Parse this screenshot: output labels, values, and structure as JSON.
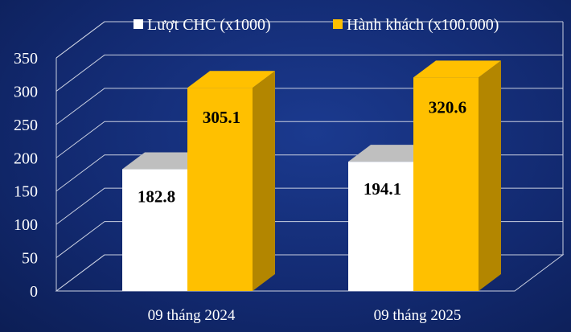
{
  "chart_data": {
    "type": "bar",
    "categories": [
      "09 tháng 2024",
      "09 tháng 2025"
    ],
    "series": [
      {
        "name": "Lượt CHC (x1000)",
        "values": [
          182.8,
          194.1
        ],
        "value_labels": [
          "182.8",
          "194.1"
        ]
      },
      {
        "name": "Hành khách (x100.000)",
        "values": [
          305.1,
          320.6
        ],
        "value_labels": [
          "305.1",
          "320.6"
        ]
      }
    ],
    "ylim": [
      0,
      350
    ],
    "yticks": [
      "0",
      "50",
      "100",
      "150",
      "200",
      "250",
      "300",
      "350"
    ],
    "grid": true,
    "legend_position": "top"
  },
  "colors": {
    "background": "#12296f",
    "series_front": [
      "#ffffff",
      "#ffc000"
    ],
    "series_top": [
      "#bfbfbf",
      "#ffc000"
    ],
    "series_side": [
      "#a6a6a6",
      "#b38600"
    ],
    "grid": "#c9cfe0"
  }
}
